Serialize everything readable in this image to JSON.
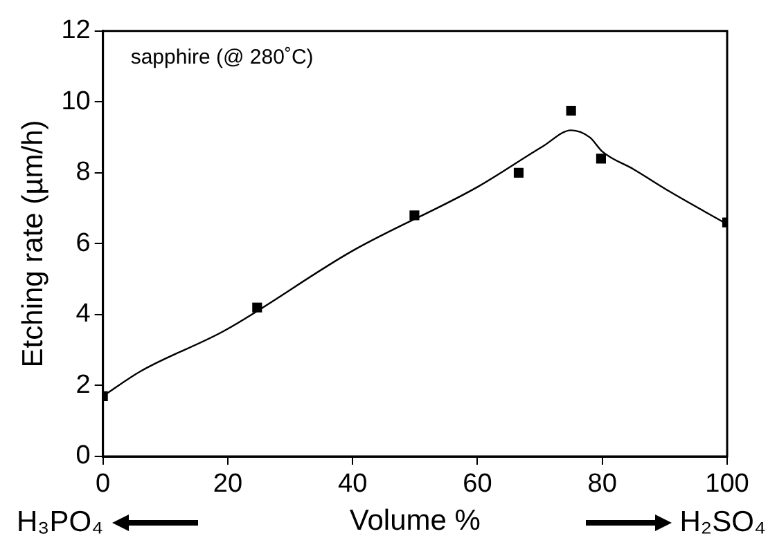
{
  "chart_data": {
    "type": "scatter",
    "ylabel": "Etching rate (µm/h)",
    "xlabel": "Volume %",
    "annotations": [
      "sapphire (@ 280˚C)",
      "H₃PO₄",
      "H₂SO₄"
    ],
    "xlim": [
      0,
      100
    ],
    "xticks": [
      0,
      20,
      40,
      60,
      80,
      100
    ],
    "ylim": [
      0,
      12
    ],
    "yticks": [
      0,
      2,
      4,
      6,
      8,
      10,
      12
    ],
    "grid": false,
    "legend": false,
    "series": [
      {
        "type": "line",
        "marker": "none",
        "color": "#000000",
        "x": [
          0,
          6,
          19.5,
          40,
          60,
          70.5,
          75,
          78,
          80,
          85,
          91,
          100
        ],
        "values": [
          1.7,
          2.4,
          3.55,
          5.8,
          7.6,
          8.75,
          9.2,
          9.0,
          8.6,
          8.1,
          7.45,
          6.55
        ]
      },
      {
        "type": "scatter",
        "marker": "square",
        "color": "#000000",
        "x": [
          0,
          24.7,
          49.9,
          66.6,
          75,
          79.8,
          100
        ],
        "values": [
          1.7,
          4.2,
          6.8,
          8.0,
          9.75,
          8.4,
          6.6
        ]
      }
    ]
  }
}
